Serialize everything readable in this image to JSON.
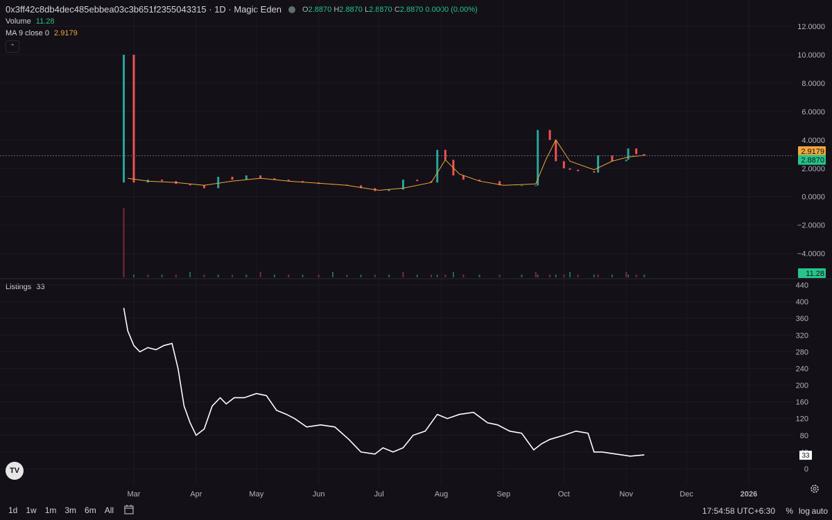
{
  "header": {
    "symbol": "0x3ff42c8db4dec485ebbea03c3b651f2355043315 · 1D · Magic Eden",
    "o_label": "O",
    "o": "2.8870",
    "h_label": "H",
    "h": "2.8870",
    "l_label": "L",
    "l": "2.8870",
    "c_label": "C",
    "c": "2.8870 0.0000 (0.00%)"
  },
  "volume_row": {
    "label": "Volume",
    "value": "11.28"
  },
  "ma_row": {
    "label": "MA 9 close 0",
    "value": "2.9179"
  },
  "listings_row": {
    "label": "Listings",
    "value": "33"
  },
  "bottom_bar": {
    "timeframes": [
      "1d",
      "1w",
      "1m",
      "3m",
      "6m",
      "All"
    ],
    "clock": "17:54:58 UTC+6:30",
    "percent": "%",
    "log": "log",
    "auto": "auto"
  },
  "colors": {
    "up": "#26a69a",
    "down": "#ef5350",
    "ma": "#f0a73a",
    "listings": "#ffffff",
    "bg": "#131018"
  },
  "chart_data": [
    {
      "type": "line",
      "title": "Price (candlestick) with MA 9",
      "x_ticks": [
        "Mar",
        "Apr",
        "May",
        "Jun",
        "Jul",
        "Aug",
        "Sep",
        "Oct",
        "Nov",
        "Dec",
        "2026"
      ],
      "y_ticks": [
        "12.0000",
        "10.0000",
        "8.0000",
        "6.0000",
        "4.0000",
        "2.0000",
        "0.0000",
        "−2.0000",
        "−4.0000"
      ],
      "ylim": [
        -4.8,
        12.0
      ],
      "last_price": "2.8870",
      "ma_value": "2.9179",
      "volume_value": "11.28",
      "series": [
        {
          "name": "Close",
          "x": [
            "Feb 24",
            "Mar 1",
            "Mar 8",
            "Mar 15",
            "Mar 22",
            "Mar 29",
            "Apr 5",
            "Apr 12",
            "Apr 19",
            "Apr 26",
            "May 3",
            "May 10",
            "May 17",
            "May 24",
            "Jun 1",
            "Jun 8",
            "Jun 15",
            "Jun 22",
            "Jun 29",
            "Jul 6",
            "Jul 13",
            "Jul 20",
            "Jul 27",
            "Jul 30",
            "Aug 3",
            "Aug 7",
            "Aug 12",
            "Aug 20",
            "Aug 30",
            "Sep 10",
            "Sep 17",
            "Sep 18",
            "Sep 24",
            "Sep 27",
            "Oct 1",
            "Oct 4",
            "Oct 8",
            "Oct 16",
            "Oct 18",
            "Oct 25",
            "Nov 1",
            "Nov 2",
            "Nov 6",
            "Nov 10"
          ],
          "values": [
            10.0,
            1.0,
            1.2,
            1.1,
            0.9,
            0.8,
            0.6,
            1.4,
            1.2,
            1.5,
            1.3,
            1.2,
            1.1,
            1.0,
            0.9,
            0.85,
            0.8,
            0.6,
            0.4,
            0.5,
            1.2,
            1.1,
            1.0,
            3.3,
            2.6,
            1.5,
            1.2,
            1.1,
            0.8,
            0.8,
            0.8,
            4.7,
            4.0,
            2.5,
            2.0,
            1.9,
            1.8,
            1.7,
            2.9,
            2.5,
            2.6,
            3.4,
            3.0,
            2.887
          ]
        },
        {
          "name": "MA 9",
          "x": [
            "Feb 26",
            "Mar 8",
            "Mar 22",
            "Apr 5",
            "Apr 19",
            "May 3",
            "May 17",
            "Jun 1",
            "Jun 15",
            "Jul 1",
            "Jul 13",
            "Jul 27",
            "Aug 3",
            "Aug 10",
            "Aug 20",
            "Sep 1",
            "Sep 17",
            "Sep 22",
            "Sep 27",
            "Oct 4",
            "Oct 16",
            "Oct 25",
            "Nov 2",
            "Nov 10"
          ],
          "values": [
            1.3,
            1.1,
            1.0,
            0.8,
            1.1,
            1.3,
            1.1,
            0.95,
            0.8,
            0.45,
            0.6,
            1.0,
            2.6,
            1.6,
            1.1,
            0.8,
            0.9,
            2.6,
            4.0,
            2.5,
            1.9,
            2.5,
            2.8,
            2.9179
          ]
        }
      ]
    },
    {
      "type": "line",
      "title": "Listings",
      "x_ticks": [
        "Mar",
        "Apr",
        "May",
        "Jun",
        "Jul",
        "Aug",
        "Sep",
        "Oct",
        "Nov",
        "Dec",
        "2026"
      ],
      "y_ticks": [
        0,
        40,
        80,
        120,
        160,
        200,
        240,
        280,
        320,
        360,
        400,
        440
      ],
      "ylim": [
        0,
        440
      ],
      "last_value": "33",
      "series": [
        {
          "name": "Listings",
          "x": [
            "Feb 24",
            "Feb 26",
            "Mar 1",
            "Mar 4",
            "Mar 8",
            "Mar 12",
            "Mar 16",
            "Mar 20",
            "Mar 23",
            "Mar 26",
            "Mar 29",
            "Apr 1",
            "Apr 5",
            "Apr 9",
            "Apr 13",
            "Apr 16",
            "Apr 20",
            "Apr 25",
            "May 1",
            "May 6",
            "May 11",
            "May 16",
            "May 20",
            "May 26",
            "Jun 2",
            "Jun 9",
            "Jun 16",
            "Jun 22",
            "Jun 29",
            "Jul 3",
            "Jul 8",
            "Jul 13",
            "Jul 18",
            "Jul 24",
            "Jul 30",
            "Aug 4",
            "Aug 10",
            "Aug 17",
            "Aug 24",
            "Aug 29",
            "Sep 4",
            "Sep 10",
            "Sep 16",
            "Sep 20",
            "Sep 24",
            "Oct 1",
            "Oct 7",
            "Oct 13",
            "Oct 16",
            "Oct 20",
            "Oct 27",
            "Nov 3",
            "Nov 10"
          ],
          "values": [
            385,
            330,
            295,
            280,
            290,
            285,
            295,
            300,
            240,
            150,
            110,
            80,
            95,
            150,
            170,
            155,
            170,
            170,
            180,
            175,
            140,
            130,
            120,
            100,
            105,
            100,
            70,
            40,
            35,
            50,
            40,
            50,
            80,
            90,
            130,
            120,
            130,
            135,
            110,
            105,
            90,
            85,
            45,
            60,
            70,
            80,
            90,
            85,
            40,
            40,
            35,
            30,
            33
          ]
        }
      ]
    }
  ]
}
